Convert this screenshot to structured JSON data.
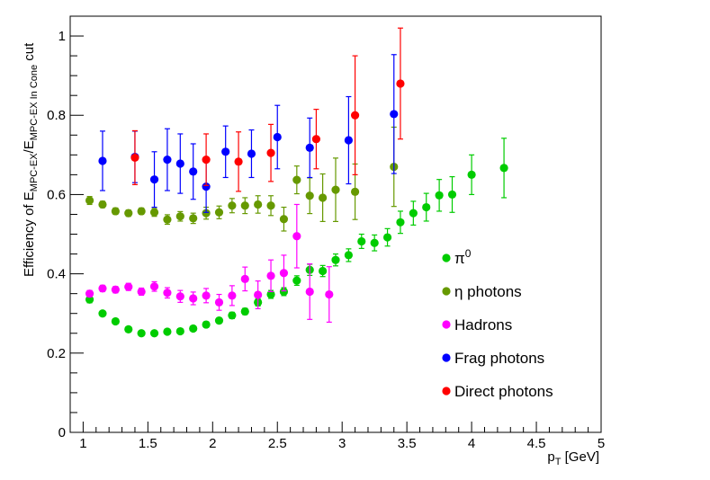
{
  "chart_data": {
    "type": "scatter",
    "title": "",
    "xlabel": {
      "main": "p",
      "sub": "T",
      "unit": " [GeV]"
    },
    "ylabel": {
      "prefix": "Efficiency of E",
      "sub1": "MPC-EX",
      "mid": "/E",
      "sub2": "MPC-EX In Cone",
      "suffix": " cut"
    },
    "xlim": [
      0.9,
      5.0
    ],
    "ylim": [
      0,
      1.05
    ],
    "x_ticks": [
      {
        "v": 1,
        "label": "1"
      },
      {
        "v": 1.5,
        "label": "1.5"
      },
      {
        "v": 2,
        "label": "2"
      },
      {
        "v": 2.5,
        "label": "2.5"
      },
      {
        "v": 3,
        "label": "3"
      },
      {
        "v": 3.5,
        "label": "3.5"
      },
      {
        "v": 4,
        "label": "4"
      },
      {
        "v": 4.5,
        "label": "4.5"
      },
      {
        "v": 5,
        "label": "5"
      }
    ],
    "y_ticks": [
      {
        "v": 0,
        "label": "0"
      },
      {
        "v": 0.2,
        "label": "0.2"
      },
      {
        "v": 0.4,
        "label": "0.4"
      },
      {
        "v": 0.6,
        "label": "0.6"
      },
      {
        "v": 0.8,
        "label": "0.8"
      },
      {
        "v": 1,
        "label": "1"
      }
    ],
    "legend_position": "bottom-right",
    "series": [
      {
        "name": "π0",
        "label_base": "π",
        "label_sup": "0",
        "color": "#00cc00",
        "points": [
          [
            1.05,
            0.335,
            0.008
          ],
          [
            1.15,
            0.3,
            0.006
          ],
          [
            1.25,
            0.28,
            0.006
          ],
          [
            1.35,
            0.26,
            0.006
          ],
          [
            1.45,
            0.25,
            0.005
          ],
          [
            1.55,
            0.25,
            0.005
          ],
          [
            1.65,
            0.254,
            0.006
          ],
          [
            1.75,
            0.255,
            0.006
          ],
          [
            1.85,
            0.262,
            0.006
          ],
          [
            1.95,
            0.272,
            0.007
          ],
          [
            2.05,
            0.282,
            0.007
          ],
          [
            2.15,
            0.295,
            0.008
          ],
          [
            2.25,
            0.305,
            0.008
          ],
          [
            2.35,
            0.328,
            0.009
          ],
          [
            2.45,
            0.348,
            0.01
          ],
          [
            2.55,
            0.355,
            0.01
          ],
          [
            2.65,
            0.383,
            0.012
          ],
          [
            2.75,
            0.41,
            0.014
          ],
          [
            2.85,
            0.407,
            0.014
          ],
          [
            2.95,
            0.435,
            0.015
          ],
          [
            3.05,
            0.447,
            0.016
          ],
          [
            3.15,
            0.482,
            0.018
          ],
          [
            3.25,
            0.478,
            0.02
          ],
          [
            3.35,
            0.492,
            0.022
          ],
          [
            3.45,
            0.53,
            0.028
          ],
          [
            3.55,
            0.553,
            0.03
          ],
          [
            3.65,
            0.568,
            0.035
          ],
          [
            3.75,
            0.598,
            0.04
          ],
          [
            3.85,
            0.6,
            0.045
          ],
          [
            4.0,
            0.65,
            0.05
          ],
          [
            4.25,
            0.667,
            0.075
          ]
        ]
      },
      {
        "name": "η photons",
        "label_base": "η photons",
        "label_sup": "",
        "color": "#669900",
        "points": [
          [
            1.05,
            0.585,
            0.01
          ],
          [
            1.15,
            0.575,
            0.008
          ],
          [
            1.25,
            0.558,
            0.008
          ],
          [
            1.35,
            0.553,
            0.008
          ],
          [
            1.45,
            0.558,
            0.008
          ],
          [
            1.55,
            0.555,
            0.01
          ],
          [
            1.65,
            0.537,
            0.012
          ],
          [
            1.75,
            0.545,
            0.012
          ],
          [
            1.85,
            0.54,
            0.013
          ],
          [
            1.95,
            0.553,
            0.015
          ],
          [
            2.05,
            0.555,
            0.016
          ],
          [
            2.15,
            0.572,
            0.018
          ],
          [
            2.25,
            0.572,
            0.02
          ],
          [
            2.35,
            0.575,
            0.022
          ],
          [
            2.45,
            0.572,
            0.025
          ],
          [
            2.55,
            0.538,
            0.03
          ],
          [
            2.65,
            0.637,
            0.035
          ],
          [
            2.75,
            0.597,
            0.045
          ],
          [
            2.85,
            0.592,
            0.06
          ],
          [
            2.95,
            0.612,
            0.08
          ],
          [
            3.1,
            0.607,
            0.07
          ],
          [
            3.4,
            0.67,
            0.1
          ]
        ]
      },
      {
        "name": "Hadrons",
        "label_base": "Hadrons",
        "label_sup": "",
        "color": "#ff00ff",
        "points": [
          [
            1.05,
            0.35,
            0.008
          ],
          [
            1.15,
            0.363,
            0.008
          ],
          [
            1.25,
            0.36,
            0.008
          ],
          [
            1.35,
            0.367,
            0.009
          ],
          [
            1.45,
            0.355,
            0.009
          ],
          [
            1.55,
            0.368,
            0.012
          ],
          [
            1.65,
            0.352,
            0.013
          ],
          [
            1.75,
            0.343,
            0.015
          ],
          [
            1.85,
            0.338,
            0.016
          ],
          [
            1.95,
            0.345,
            0.018
          ],
          [
            2.05,
            0.328,
            0.02
          ],
          [
            2.15,
            0.345,
            0.025
          ],
          [
            2.25,
            0.387,
            0.03
          ],
          [
            2.35,
            0.347,
            0.035
          ],
          [
            2.45,
            0.395,
            0.04
          ],
          [
            2.55,
            0.402,
            0.045
          ],
          [
            2.65,
            0.495,
            0.08
          ],
          [
            2.75,
            0.355,
            0.07
          ],
          [
            2.9,
            0.348,
            0.07
          ]
        ]
      },
      {
        "name": "Frag photons",
        "label_base": "Frag photons",
        "label_sup": "",
        "color": "#0000ff",
        "points": [
          [
            1.15,
            0.685,
            0.075
          ],
          [
            1.4,
            0.695,
            0.065
          ],
          [
            1.55,
            0.638,
            0.07
          ],
          [
            1.65,
            0.688,
            0.078
          ],
          [
            1.75,
            0.678,
            0.075
          ],
          [
            1.85,
            0.658,
            0.07
          ],
          [
            1.95,
            0.62,
            0.065
          ],
          [
            2.1,
            0.708,
            0.065
          ],
          [
            2.3,
            0.703,
            0.06
          ],
          [
            2.5,
            0.745,
            0.08
          ],
          [
            2.75,
            0.718,
            0.075
          ],
          [
            3.05,
            0.737,
            0.11
          ],
          [
            3.4,
            0.803,
            0.15
          ]
        ]
      },
      {
        "name": "Direct photons",
        "label_base": "Direct photons",
        "label_sup": "",
        "color": "#ff0000",
        "points": [
          [
            1.4,
            0.693,
            0.068
          ],
          [
            1.95,
            0.688,
            0.065
          ],
          [
            2.2,
            0.683,
            0.075
          ],
          [
            2.45,
            0.705,
            0.072
          ],
          [
            2.8,
            0.74,
            0.075
          ],
          [
            3.1,
            0.8,
            0.15
          ],
          [
            3.45,
            0.88,
            0.14
          ]
        ]
      }
    ]
  }
}
